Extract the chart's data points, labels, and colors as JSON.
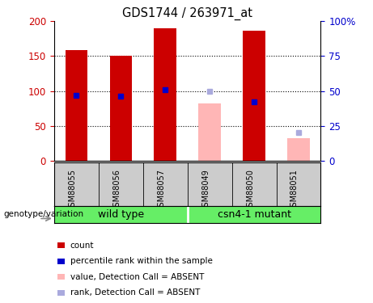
{
  "title": "GDS1744 / 263971_at",
  "samples": [
    "GSM88055",
    "GSM88056",
    "GSM88057",
    "GSM88049",
    "GSM88050",
    "GSM88051"
  ],
  "count_values": [
    158,
    150,
    190,
    null,
    186,
    null
  ],
  "rank_values": [
    47,
    46,
    51,
    null,
    42,
    null
  ],
  "absent_value_values": [
    null,
    null,
    null,
    82,
    null,
    32
  ],
  "absent_rank_values": [
    null,
    null,
    null,
    50,
    null,
    20
  ],
  "ylim_left": [
    0,
    200
  ],
  "ylim_right": [
    0,
    100
  ],
  "yticks_left": [
    0,
    50,
    100,
    150,
    200
  ],
  "yticks_right": [
    0,
    25,
    50,
    75,
    100
  ],
  "yticklabels_left": [
    "0",
    "50",
    "100",
    "150",
    "200"
  ],
  "yticklabels_right": [
    "0",
    "25",
    "50",
    "75",
    "100%"
  ],
  "bar_color_present": "#cc0000",
  "bar_color_absent_value": "#ffb6b6",
  "rank_color_present": "#0000cc",
  "rank_color_absent": "#aaaadd",
  "tick_label_color_left": "#cc0000",
  "tick_label_color_right": "#0000cc",
  "group_label_bg": "#66ee66",
  "sample_label_bg": "#cccccc",
  "genotype_label": "genotype/variation",
  "wild_type_label": "wild type",
  "mutant_label": "csn4-1 mutant",
  "legend_items": [
    {
      "label": "count",
      "color": "#cc0000"
    },
    {
      "label": "percentile rank within the sample",
      "color": "#0000cc"
    },
    {
      "label": "value, Detection Call = ABSENT",
      "color": "#ffb6b6"
    },
    {
      "label": "rank, Detection Call = ABSENT",
      "color": "#aaaadd"
    }
  ]
}
